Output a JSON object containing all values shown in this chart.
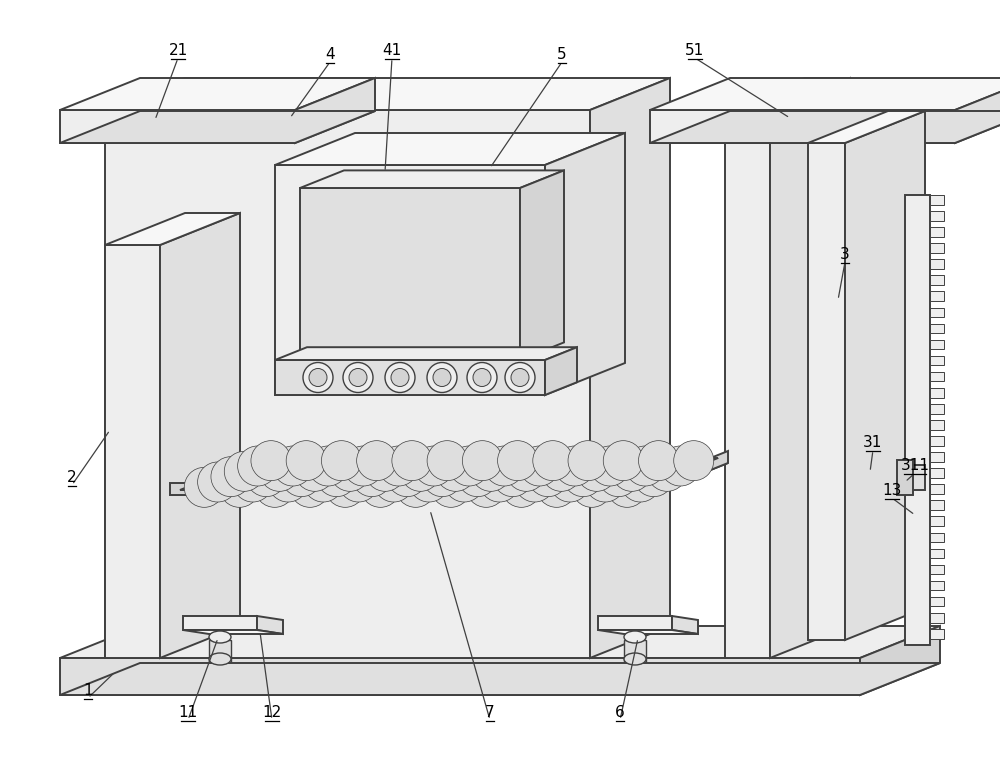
{
  "bg_color": "#ffffff",
  "lc": "#404040",
  "lw": 1.4,
  "fill_light": "#f7f7f7",
  "fill_mid": "#eeeeee",
  "fill_dark": "#e0e0e0",
  "fill_darker": "#d4d4d4"
}
